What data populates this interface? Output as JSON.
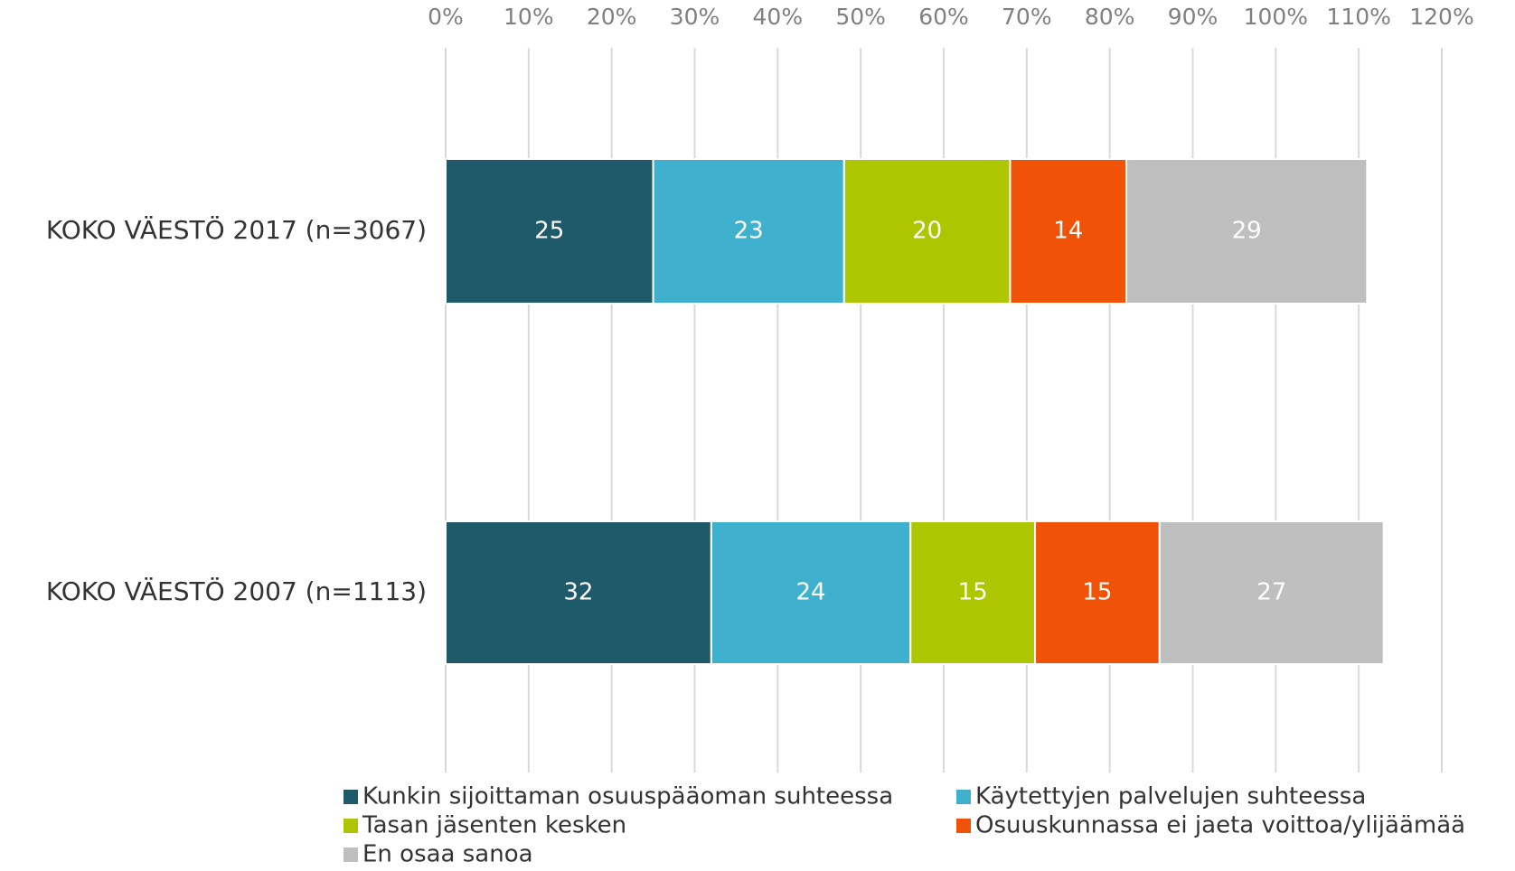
{
  "chart_data": {
    "type": "stacked_bar_horizontal",
    "categories": [
      "KOKO VÄESTÖ 2017 (n=3067)",
      "KOKO VÄESTÖ 2007 (n=1113)"
    ],
    "series": [
      {
        "name": "Kunkin sijoittaman osuuspääoman suhteessa",
        "color": "#1f5a6b",
        "values": [
          25,
          32
        ]
      },
      {
        "name": "Käytettyjen palvelujen suhteessa",
        "color": "#3fb1cf",
        "values": [
          23,
          24
        ]
      },
      {
        "name": "Tasan jäsenten kesken",
        "color": "#aec600",
        "values": [
          20,
          15
        ]
      },
      {
        "name": "Osuuskunnassa ei jaeta voittoa/ylijäämää",
        "color": "#f05307",
        "values": [
          14,
          15
        ]
      },
      {
        "name": "En osaa sanoa",
        "color": "#bfbfbf",
        "values": [
          29,
          27
        ]
      }
    ],
    "xlim": [
      0,
      120
    ],
    "xticks": [
      {
        "value": 0,
        "label": "0%"
      },
      {
        "value": 10,
        "label": "10%"
      },
      {
        "value": 20,
        "label": "20%"
      },
      {
        "value": 30,
        "label": "30%"
      },
      {
        "value": 40,
        "label": "40%"
      },
      {
        "value": 50,
        "label": "50%"
      },
      {
        "value": 60,
        "label": "60%"
      },
      {
        "value": 70,
        "label": "70%"
      },
      {
        "value": 80,
        "label": "80%"
      },
      {
        "value": 90,
        "label": "90%"
      },
      {
        "value": 100,
        "label": "100%"
      },
      {
        "value": 110,
        "label": "110%"
      },
      {
        "value": 120,
        "label": "120%"
      }
    ],
    "grid": true,
    "legend": "bottom"
  }
}
